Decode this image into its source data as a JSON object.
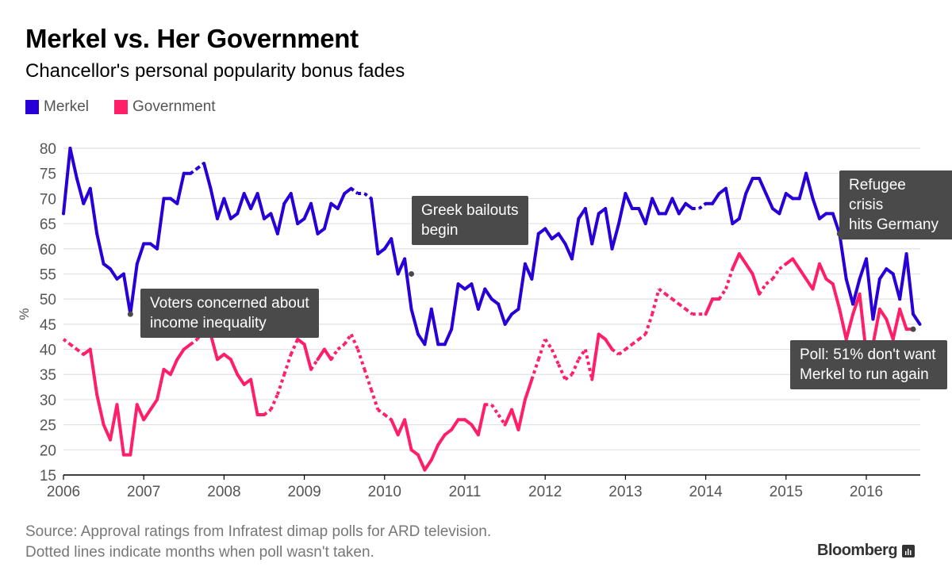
{
  "chart_data": {
    "type": "line",
    "title": "Merkel vs. Her Government",
    "subtitle": "Chancellor's personal popularity bonus fades",
    "xlabel": "",
    "ylabel": "%",
    "ylim": [
      15,
      80
    ],
    "yticks": [
      15,
      20,
      25,
      30,
      35,
      40,
      45,
      50,
      55,
      60,
      65,
      70,
      75,
      80
    ],
    "xticks": [
      "2006",
      "2007",
      "2008",
      "2009",
      "2010",
      "2011",
      "2012",
      "2013",
      "2014",
      "2015",
      "2016"
    ],
    "x_start": "2006-01",
    "x_step": "month",
    "grid": true,
    "legend_position": "top-left",
    "series": [
      {
        "name": "Merkel",
        "color": "#2800d7",
        "values": [
          67,
          80,
          74,
          69,
          72,
          63,
          57,
          56,
          54,
          55,
          47,
          57,
          61,
          61,
          60,
          70,
          70,
          69,
          75,
          75,
          76,
          77,
          72,
          66,
          70,
          66,
          67,
          71,
          68,
          71,
          66,
          67,
          63,
          69,
          71,
          65,
          66,
          69,
          63,
          64,
          69,
          68,
          71,
          72,
          71,
          71,
          70,
          59,
          60,
          62,
          55,
          58,
          48,
          43,
          41,
          48,
          41,
          41,
          44,
          53,
          52,
          53,
          48,
          52,
          50,
          49,
          45,
          47,
          48,
          57,
          54,
          63,
          64,
          62,
          63,
          61,
          58,
          66,
          68,
          61,
          67,
          68,
          60,
          65,
          71,
          68,
          68,
          65,
          70,
          67,
          67,
          70,
          67,
          69,
          68,
          68,
          69,
          69,
          71,
          72,
          65,
          66,
          71,
          74,
          74,
          71,
          68,
          67,
          71,
          70,
          70,
          75,
          70,
          66,
          67,
          67,
          63,
          54,
          49,
          54,
          58,
          46,
          54,
          56,
          55,
          50,
          59,
          47,
          45
        ],
        "dotted_into": [
          20,
          21,
          44,
          45,
          46,
          95,
          96
        ]
      },
      {
        "name": "Government",
        "color": "#ff1f68",
        "values": [
          42,
          41,
          40,
          39,
          40,
          31,
          25,
          22,
          29,
          19,
          19,
          29,
          26,
          28,
          30,
          36,
          35,
          38,
          40,
          41,
          42,
          44,
          43,
          38,
          39,
          38,
          35,
          33,
          34,
          27,
          27,
          28,
          31,
          35,
          39,
          42,
          41,
          36,
          38,
          40,
          38,
          40,
          41,
          43,
          40,
          36,
          32,
          28,
          27,
          26,
          23,
          26,
          20,
          19,
          16,
          18,
          21,
          23,
          24,
          26,
          26,
          25,
          23,
          29,
          29,
          27,
          25,
          28,
          24,
          30,
          34,
          38,
          42,
          40,
          37,
          34,
          35,
          38,
          40,
          34,
          43,
          42,
          40,
          39,
          40,
          41,
          42,
          43,
          47,
          52,
          51,
          50,
          49,
          48,
          47,
          47,
          47,
          50,
          50,
          52,
          56,
          59,
          57,
          55,
          51,
          53,
          54,
          56,
          57,
          58,
          56,
          54,
          52,
          57,
          54,
          53,
          48,
          42,
          47,
          51,
          39,
          41,
          48,
          46,
          42,
          48,
          44,
          44
        ],
        "dotted_into": [
          1,
          2,
          3,
          20,
          21,
          31,
          32,
          33,
          34,
          35,
          38,
          41,
          42,
          43,
          44,
          45,
          46,
          47,
          48,
          49,
          64,
          65,
          66,
          71,
          72,
          73,
          74,
          75,
          76,
          77,
          78,
          79,
          83,
          84,
          85,
          86,
          87,
          88,
          89,
          90,
          91,
          92,
          93,
          94,
          95,
          96,
          99,
          100,
          105,
          106,
          107,
          108
        ]
      }
    ],
    "annotations": [
      {
        "text": [
          "Voters concerned about",
          "income inequality"
        ],
        "series": "Merkel",
        "date": "2006-11"
      },
      {
        "text": [
          "Greek bailouts",
          "begin"
        ],
        "series": "Merkel",
        "date": "2010-05"
      },
      {
        "text": [
          "Refugee crisis",
          "hits Germany"
        ],
        "series": "Merkel",
        "date": "2015-09"
      },
      {
        "text": [
          "Poll: 51% don't want",
          "Merkel to run again"
        ],
        "series": "Government",
        "date": "2016-08"
      }
    ]
  },
  "legend": [
    {
      "label": "Merkel",
      "color": "#2800d7"
    },
    {
      "label": "Government",
      "color": "#ff1f68"
    }
  ],
  "footer": {
    "source": "Source: Approval ratings from Infratest dimap polls for ARD television.",
    "note": "Dotted lines indicate months when poll wasn't taken.",
    "brand": "Bloomberg"
  }
}
